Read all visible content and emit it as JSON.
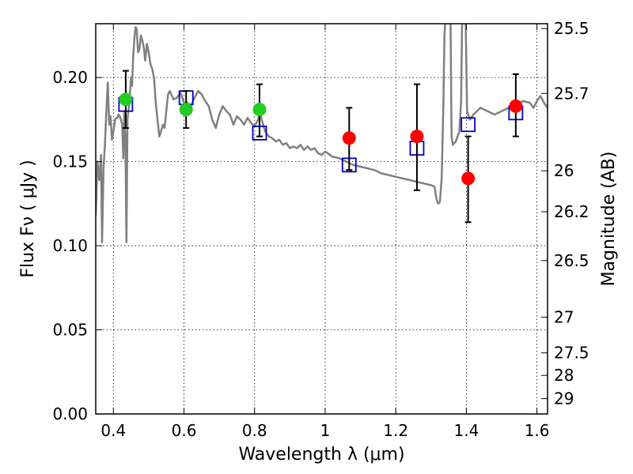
{
  "chart_data": {
    "type": "scatter",
    "title": "",
    "xlabel": "Wavelength  λ (μm)",
    "ylabel": "Flux  Fν  ( μJy )",
    "ylabel_right": "Magnitude (AB)",
    "xlim": [
      0.35,
      1.63
    ],
    "ylim": [
      0.0,
      0.232
    ],
    "grid": true,
    "x_ticks": [
      {
        "value": 0.4,
        "label": "0.4"
      },
      {
        "value": 0.6,
        "label": "0.6"
      },
      {
        "value": 0.8,
        "label": "0.8"
      },
      {
        "value": 1.0,
        "label": "1"
      },
      {
        "value": 1.2,
        "label": "1.2"
      },
      {
        "value": 1.4,
        "label": "1.4"
      },
      {
        "value": 1.6,
        "label": "1.6"
      }
    ],
    "y_ticks": [
      {
        "value": 0.0,
        "label": "0.00"
      },
      {
        "value": 0.05,
        "label": "0.05"
      },
      {
        "value": 0.1,
        "label": "0.10"
      },
      {
        "value": 0.15,
        "label": "0.15"
      },
      {
        "value": 0.2,
        "label": "0.20"
      }
    ],
    "right_ticks": [
      {
        "value": 25.5,
        "label": "25.5"
      },
      {
        "value": 25.7,
        "label": "25.7"
      },
      {
        "value": 26.0,
        "label": "26"
      },
      {
        "value": 26.2,
        "label": "26.2"
      },
      {
        "value": 26.5,
        "label": "26.5"
      },
      {
        "value": 27.0,
        "label": "27"
      },
      {
        "value": 27.5,
        "label": "27.5"
      },
      {
        "value": 28.0,
        "label": "28"
      },
      {
        "value": 29.0,
        "label": "29"
      }
    ],
    "colors": {
      "model_line": "#808080",
      "model_points": "#0000cc",
      "optical_points": "#22cc22",
      "nir_points": "#ff0000",
      "error_bars": "#000000"
    },
    "series": [
      {
        "kind": "model-spectrum",
        "points": [
          [
            0.35,
            0.118
          ],
          [
            0.355,
            0.15
          ],
          [
            0.36,
            0.139
          ],
          [
            0.365,
            0.154
          ],
          [
            0.368,
            0.102
          ],
          [
            0.372,
            0.146
          ],
          [
            0.376,
            0.16
          ],
          [
            0.38,
            0.18
          ],
          [
            0.384,
            0.197
          ],
          [
            0.388,
            0.172
          ],
          [
            0.392,
            0.177
          ],
          [
            0.396,
            0.163
          ],
          [
            0.4,
            0.168
          ],
          [
            0.405,
            0.175
          ],
          [
            0.41,
            0.176
          ],
          [
            0.415,
            0.178
          ],
          [
            0.42,
            0.176
          ],
          [
            0.425,
            0.172
          ],
          [
            0.428,
            0.152
          ],
          [
            0.431,
            0.18
          ],
          [
            0.434,
            0.165
          ],
          [
            0.437,
            0.102
          ],
          [
            0.44,
            0.175
          ],
          [
            0.445,
            0.185
          ],
          [
            0.45,
            0.2
          ],
          [
            0.453,
            0.195
          ],
          [
            0.456,
            0.212
          ],
          [
            0.46,
            0.225
          ],
          [
            0.463,
            0.23
          ],
          [
            0.466,
            0.229
          ],
          [
            0.47,
            0.215
          ],
          [
            0.474,
            0.217
          ],
          [
            0.478,
            0.225
          ],
          [
            0.482,
            0.222
          ],
          [
            0.486,
            0.218
          ],
          [
            0.49,
            0.21
          ],
          [
            0.495,
            0.22
          ],
          [
            0.5,
            0.215
          ],
          [
            0.505,
            0.208
          ],
          [
            0.51,
            0.205
          ],
          [
            0.515,
            0.2
          ],
          [
            0.52,
            0.185
          ],
          [
            0.525,
            0.175
          ],
          [
            0.53,
            0.165
          ],
          [
            0.535,
            0.168
          ],
          [
            0.54,
            0.172
          ],
          [
            0.545,
            0.17
          ],
          [
            0.55,
            0.18
          ],
          [
            0.555,
            0.19
          ],
          [
            0.56,
            0.192
          ],
          [
            0.57,
            0.187
          ],
          [
            0.58,
            0.188
          ],
          [
            0.59,
            0.191
          ],
          [
            0.6,
            0.185
          ],
          [
            0.61,
            0.185
          ],
          [
            0.62,
            0.183
          ],
          [
            0.63,
            0.188
          ],
          [
            0.64,
            0.192
          ],
          [
            0.65,
            0.19
          ],
          [
            0.66,
            0.186
          ],
          [
            0.67,
            0.183
          ],
          [
            0.68,
            0.175
          ],
          [
            0.69,
            0.17
          ],
          [
            0.7,
            0.178
          ],
          [
            0.71,
            0.183
          ],
          [
            0.72,
            0.18
          ],
          [
            0.73,
            0.178
          ],
          [
            0.74,
            0.172
          ],
          [
            0.75,
            0.177
          ],
          [
            0.76,
            0.175
          ],
          [
            0.77,
            0.172
          ],
          [
            0.78,
            0.176
          ],
          [
            0.79,
            0.173
          ],
          [
            0.8,
            0.171
          ],
          [
            0.81,
            0.175
          ],
          [
            0.815,
            0.18
          ],
          [
            0.82,
            0.175
          ],
          [
            0.83,
            0.168
          ],
          [
            0.84,
            0.165
          ],
          [
            0.85,
            0.164
          ],
          [
            0.86,
            0.162
          ],
          [
            0.87,
            0.163
          ],
          [
            0.88,
            0.16
          ],
          [
            0.89,
            0.161
          ],
          [
            0.9,
            0.158
          ],
          [
            0.91,
            0.159
          ],
          [
            0.92,
            0.158
          ],
          [
            0.93,
            0.16
          ],
          [
            0.94,
            0.157
          ],
          [
            0.95,
            0.159
          ],
          [
            0.96,
            0.157
          ],
          [
            0.97,
            0.158
          ],
          [
            0.98,
            0.155
          ],
          [
            0.99,
            0.154
          ],
          [
            1.0,
            0.156
          ],
          [
            1.02,
            0.153
          ],
          [
            1.04,
            0.152
          ],
          [
            1.06,
            0.15
          ],
          [
            1.08,
            0.148
          ],
          [
            1.1,
            0.147
          ],
          [
            1.12,
            0.146
          ],
          [
            1.14,
            0.145
          ],
          [
            1.16,
            0.143
          ],
          [
            1.18,
            0.142
          ],
          [
            1.2,
            0.141
          ],
          [
            1.22,
            0.14
          ],
          [
            1.24,
            0.139
          ],
          [
            1.26,
            0.138
          ],
          [
            1.28,
            0.137
          ],
          [
            1.3,
            0.136
          ],
          [
            1.31,
            0.135
          ],
          [
            1.315,
            0.128
          ],
          [
            1.32,
            0.125
          ],
          [
            1.325,
            0.126
          ],
          [
            1.33,
            0.14
          ],
          [
            1.335,
            0.185
          ],
          [
            1.338,
            0.225
          ],
          [
            1.342,
            0.24
          ],
          [
            1.35,
            0.24
          ],
          [
            1.355,
            0.24
          ],
          [
            1.358,
            0.165
          ],
          [
            1.362,
            0.16
          ],
          [
            1.37,
            0.162
          ],
          [
            1.38,
            0.168
          ],
          [
            1.385,
            0.185
          ],
          [
            1.388,
            0.232
          ],
          [
            1.392,
            0.24
          ],
          [
            1.398,
            0.235
          ],
          [
            1.402,
            0.18
          ],
          [
            1.41,
            0.175
          ],
          [
            1.42,
            0.178
          ],
          [
            1.44,
            0.182
          ],
          [
            1.46,
            0.18
          ],
          [
            1.48,
            0.178
          ],
          [
            1.5,
            0.18
          ],
          [
            1.52,
            0.182
          ],
          [
            1.54,
            0.183
          ],
          [
            1.56,
            0.186
          ],
          [
            1.58,
            0.185
          ],
          [
            1.59,
            0.182
          ],
          [
            1.6,
            0.186
          ],
          [
            1.61,
            0.189
          ],
          [
            1.62,
            0.185
          ],
          [
            1.63,
            0.182
          ]
        ]
      },
      {
        "kind": "model-photometry",
        "marker": "open-square",
        "points": [
          {
            "x": 0.435,
            "y": 0.184
          },
          {
            "x": 0.606,
            "y": 0.188
          },
          {
            "x": 0.814,
            "y": 0.167
          },
          {
            "x": 1.068,
            "y": 0.148
          },
          {
            "x": 1.26,
            "y": 0.158
          },
          {
            "x": 1.405,
            "y": 0.172
          },
          {
            "x": 1.54,
            "y": 0.179
          }
        ]
      },
      {
        "kind": "observed-optical",
        "marker": "filled-circle",
        "points": [
          {
            "x": 0.435,
            "y": 0.187,
            "err_low": 0.17,
            "err_high": 0.204
          },
          {
            "x": 0.606,
            "y": 0.181,
            "err_low": 0.17,
            "err_high": 0.192
          },
          {
            "x": 0.814,
            "y": 0.181,
            "err_low": 0.165,
            "err_high": 0.196
          }
        ]
      },
      {
        "kind": "observed-nir",
        "marker": "filled-circle",
        "points": [
          {
            "x": 1.068,
            "y": 0.164,
            "err_low": 0.145,
            "err_high": 0.182
          },
          {
            "x": 1.26,
            "y": 0.165,
            "err_low": 0.133,
            "err_high": 0.196
          },
          {
            "x": 1.405,
            "y": 0.14,
            "err_low": 0.114,
            "err_high": 0.165
          },
          {
            "x": 1.54,
            "y": 0.183,
            "err_low": 0.165,
            "err_high": 0.202
          }
        ]
      }
    ]
  }
}
